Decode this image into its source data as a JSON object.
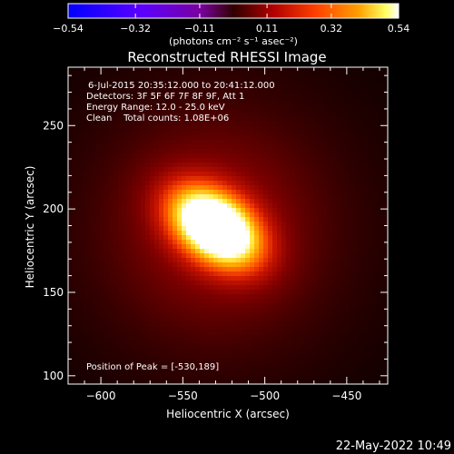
{
  "chart_data": {
    "type": "heatmap",
    "title": "Reconstructed RHESSI Image",
    "xlabel": "Heliocentric X (arcsec)",
    "ylabel": "Heliocentric Y (arcsec)",
    "xlim": [
      -620,
      -425
    ],
    "ylim": [
      95,
      285
    ],
    "xticks": [
      -600,
      -550,
      -500,
      -450
    ],
    "xtick_labels": [
      "−600",
      "−550",
      "−500",
      "−450"
    ],
    "yticks": [
      100,
      150,
      200,
      250
    ],
    "ytick_labels": [
      "100",
      "150",
      "200",
      "250"
    ],
    "colorbar": {
      "min": -0.54,
      "max": 0.54,
      "ticks": [
        -0.54,
        -0.32,
        -0.11,
        0.11,
        0.32,
        0.54
      ],
      "tick_labels": [
        "−0.54",
        "−0.32",
        "−0.11",
        "0.11",
        "0.32",
        "0.54"
      ],
      "units_label": "(photons cm⁻² s⁻¹ asec⁻²)"
    },
    "source": {
      "peak_x": -530,
      "peak_y": 189,
      "peak_value": 0.54,
      "sigma_major": 22,
      "sigma_minor": 14,
      "angle_deg": -35,
      "halo_sigma": 48,
      "halo_amplitude": 0.3
    },
    "annotations": [
      "6-Jul-2015 20:35:12.000 to 20:41:12.000",
      "Detectors: 3F 5F 6F 7F 8F 9F, Att 1",
      "Energy Range: 12.0 - 25.0 keV",
      "Clean    Total counts: 1.08E+06"
    ],
    "peak_label": "Position of Peak = [-530,189]",
    "timestamp": "22-May-2022 10:49",
    "colors": {
      "background": "#000000",
      "axes": "#ffffff",
      "colormap": [
        "#0000ff",
        "#5a00ff",
        "#7a00a0",
        "#400000",
        "#a00000",
        "#ff3000",
        "#ff9000",
        "#ffff60",
        "#ffffff"
      ]
    }
  }
}
